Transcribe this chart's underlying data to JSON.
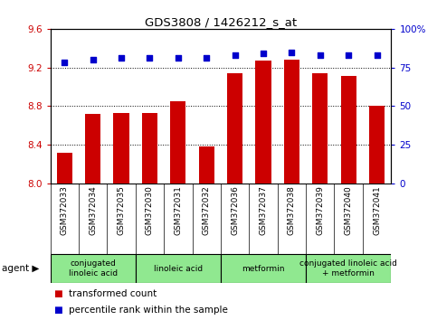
{
  "title": "GDS3808 / 1426212_s_at",
  "samples": [
    "GSM372033",
    "GSM372034",
    "GSM372035",
    "GSM372030",
    "GSM372031",
    "GSM372032",
    "GSM372036",
    "GSM372037",
    "GSM372038",
    "GSM372039",
    "GSM372040",
    "GSM372041"
  ],
  "bar_values": [
    8.32,
    8.72,
    8.73,
    8.73,
    8.85,
    8.38,
    9.14,
    9.27,
    9.28,
    9.14,
    9.11,
    8.8
  ],
  "dot_values": [
    78,
    80,
    81,
    81,
    81,
    81,
    83,
    84,
    85,
    83,
    83,
    83
  ],
  "ylim_left": [
    8.0,
    9.6
  ],
  "ylim_right": [
    0,
    100
  ],
  "yticks_left": [
    8.0,
    8.4,
    8.8,
    9.2,
    9.6
  ],
  "yticks_right": [
    0,
    25,
    50,
    75,
    100
  ],
  "bar_color": "#cc0000",
  "dot_color": "#0000cc",
  "background_plot": "#ffffff",
  "background_label": "#c8c8c8",
  "background_agent": "#90e890",
  "agent_groups": [
    {
      "label": "conjugated\nlinoleic acid",
      "start": 0,
      "end": 3
    },
    {
      "label": "linoleic acid",
      "start": 3,
      "end": 6
    },
    {
      "label": "metformin",
      "start": 6,
      "end": 9
    },
    {
      "label": "conjugated linoleic acid\n+ metformin",
      "start": 9,
      "end": 12
    }
  ],
  "legend_items": [
    {
      "label": "transformed count",
      "color": "#cc0000"
    },
    {
      "label": "percentile rank within the sample",
      "color": "#0000cc"
    }
  ]
}
